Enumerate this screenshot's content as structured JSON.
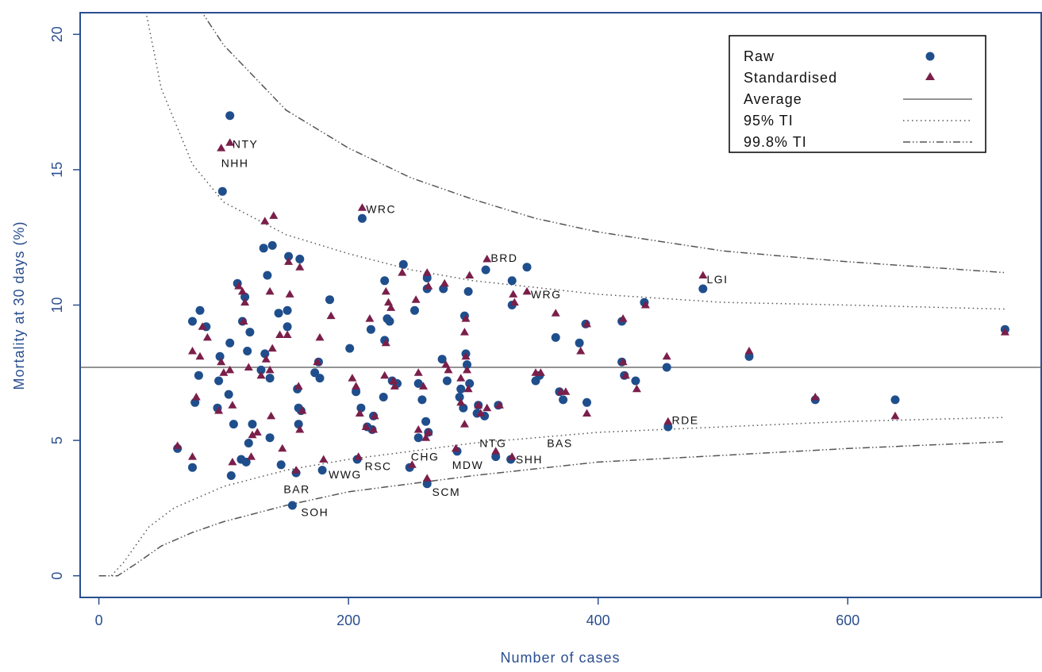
{
  "chart_data": {
    "type": "scatter",
    "title": "",
    "xlabel": "Number of cases",
    "ylabel": "Mortality at 30 days (%)",
    "xlim": [
      -15,
      755
    ],
    "ylim": [
      -0.8,
      20.8
    ],
    "xticks": [
      0,
      200,
      400,
      600
    ],
    "yticks": [
      0,
      5,
      10,
      15,
      20
    ],
    "grid": false,
    "legend_position": "top-right",
    "legend": [
      {
        "label": "Raw",
        "kind": "circle"
      },
      {
        "label": "Standardised",
        "kind": "triangle"
      },
      {
        "label": "Average",
        "kind": "solid"
      },
      {
        "label": "95% TI",
        "kind": "dotted"
      },
      {
        "label": "99.8% TI",
        "kind": "dashdot"
      }
    ],
    "average": 7.7,
    "colors": {
      "raw": "#1f4e8c",
      "standardised": "#7a1f4a",
      "axis": "#2a4f8f",
      "lines": "#555555"
    },
    "series": [
      {
        "name": "Raw",
        "marker": "circle",
        "points": [
          [
            63,
            4.7
          ],
          [
            75,
            4.0
          ],
          [
            75,
            9.4
          ],
          [
            77,
            6.4
          ],
          [
            80,
            7.4
          ],
          [
            81,
            9.8
          ],
          [
            86,
            9.2
          ],
          [
            95,
            6.2
          ],
          [
            96,
            7.2
          ],
          [
            97,
            8.1
          ],
          [
            99,
            14.2
          ],
          [
            104,
            6.7
          ],
          [
            105,
            8.6
          ],
          [
            105,
            17.0
          ],
          [
            106,
            3.7
          ],
          [
            108,
            5.6
          ],
          [
            111,
            10.8
          ],
          [
            114,
            4.3
          ],
          [
            115,
            9.4
          ],
          [
            117,
            10.3
          ],
          [
            118,
            4.2
          ],
          [
            119,
            8.3
          ],
          [
            120,
            4.9
          ],
          [
            121,
            9.0
          ],
          [
            123,
            5.6
          ],
          [
            130,
            7.6
          ],
          [
            132,
            12.1
          ],
          [
            133,
            8.2
          ],
          [
            135,
            11.1
          ],
          [
            137,
            7.3
          ],
          [
            137,
            5.1
          ],
          [
            139,
            12.2
          ],
          [
            144,
            9.7
          ],
          [
            146,
            4.1
          ],
          [
            151,
            9.2
          ],
          [
            151,
            9.8
          ],
          [
            152,
            11.8
          ],
          [
            155,
            2.6
          ],
          [
            158,
            3.8
          ],
          [
            159,
            6.9
          ],
          [
            160,
            5.6
          ],
          [
            160,
            6.2
          ],
          [
            161,
            11.7
          ],
          [
            162,
            6.1
          ],
          [
            173,
            7.5
          ],
          [
            176,
            7.9
          ],
          [
            177,
            7.3
          ],
          [
            179,
            3.9
          ],
          [
            185,
            10.2
          ],
          [
            201,
            8.4
          ],
          [
            206,
            6.8
          ],
          [
            207,
            4.3
          ],
          [
            210,
            6.2
          ],
          [
            211,
            13.2
          ],
          [
            215,
            5.5
          ],
          [
            218,
            9.1
          ],
          [
            219,
            5.4
          ],
          [
            220,
            5.9
          ],
          [
            228,
            6.6
          ],
          [
            229,
            10.9
          ],
          [
            229,
            8.7
          ],
          [
            231,
            9.5
          ],
          [
            233,
            9.4
          ],
          [
            235,
            7.2
          ],
          [
            239,
            7.1
          ],
          [
            244,
            11.5
          ],
          [
            249,
            4.0
          ],
          [
            253,
            9.8
          ],
          [
            256,
            7.1
          ],
          [
            256,
            5.1
          ],
          [
            259,
            6.5
          ],
          [
            262,
            5.7
          ],
          [
            263,
            3.4
          ],
          [
            263,
            11.0
          ],
          [
            263,
            10.6
          ],
          [
            264,
            5.3
          ],
          [
            275,
            8.0
          ],
          [
            276,
            10.6
          ],
          [
            279,
            7.2
          ],
          [
            287,
            4.6
          ],
          [
            289,
            6.6
          ],
          [
            290,
            6.9
          ],
          [
            292,
            6.2
          ],
          [
            293,
            9.6
          ],
          [
            294,
            8.2
          ],
          [
            295,
            7.8
          ],
          [
            296,
            10.5
          ],
          [
            297,
            7.1
          ],
          [
            303,
            6.0
          ],
          [
            304,
            6.3
          ],
          [
            309,
            5.9
          ],
          [
            310,
            11.3
          ],
          [
            318,
            4.4
          ],
          [
            320,
            6.3
          ],
          [
            330,
            4.3
          ],
          [
            331,
            10.9
          ],
          [
            331,
            10.0
          ],
          [
            343,
            11.4
          ],
          [
            350,
            7.2
          ],
          [
            353,
            7.4
          ],
          [
            366,
            8.8
          ],
          [
            369,
            6.8
          ],
          [
            372,
            6.5
          ],
          [
            385,
            8.6
          ],
          [
            390,
            9.3
          ],
          [
            391,
            6.4
          ],
          [
            419,
            9.4
          ],
          [
            419,
            7.9
          ],
          [
            421,
            7.4
          ],
          [
            430,
            7.2
          ],
          [
            437,
            10.1
          ],
          [
            455,
            7.7
          ],
          [
            456,
            5.5
          ],
          [
            484,
            10.6
          ],
          [
            521,
            8.1
          ],
          [
            574,
            6.5
          ],
          [
            638,
            6.5
          ],
          [
            726,
            9.1
          ]
        ]
      },
      {
        "name": "Standardised",
        "marker": "triangle",
        "points": [
          [
            63,
            4.8
          ],
          [
            75,
            8.3
          ],
          [
            75,
            4.4
          ],
          [
            78,
            6.6
          ],
          [
            81,
            8.1
          ],
          [
            83,
            9.2
          ],
          [
            87,
            8.8
          ],
          [
            96,
            6.1
          ],
          [
            98,
            7.9
          ],
          [
            98,
            15.8
          ],
          [
            100,
            7.5
          ],
          [
            105,
            16.0
          ],
          [
            105,
            7.6
          ],
          [
            107,
            6.3
          ],
          [
            107,
            4.2
          ],
          [
            112,
            10.7
          ],
          [
            115,
            10.5
          ],
          [
            116,
            9.4
          ],
          [
            117,
            10.1
          ],
          [
            120,
            7.7
          ],
          [
            122,
            4.4
          ],
          [
            123,
            5.2
          ],
          [
            127,
            5.3
          ],
          [
            130,
            7.4
          ],
          [
            133,
            13.1
          ],
          [
            134,
            8.0
          ],
          [
            137,
            10.5
          ],
          [
            137,
            7.6
          ],
          [
            138,
            5.9
          ],
          [
            139,
            8.4
          ],
          [
            140,
            13.3
          ],
          [
            145,
            8.9
          ],
          [
            147,
            4.7
          ],
          [
            151,
            8.9
          ],
          [
            152,
            11.6
          ],
          [
            153,
            10.4
          ],
          [
            158,
            3.9
          ],
          [
            160,
            7.0
          ],
          [
            161,
            11.4
          ],
          [
            161,
            5.4
          ],
          [
            163,
            6.1
          ],
          [
            175,
            7.9
          ],
          [
            177,
            8.8
          ],
          [
            180,
            4.3
          ],
          [
            186,
            9.6
          ],
          [
            203,
            7.3
          ],
          [
            206,
            7.0
          ],
          [
            208,
            4.4
          ],
          [
            209,
            6.0
          ],
          [
            211,
            13.6
          ],
          [
            214,
            5.5
          ],
          [
            217,
            9.5
          ],
          [
            220,
            5.4
          ],
          [
            221,
            5.9
          ],
          [
            229,
            7.4
          ],
          [
            230,
            10.5
          ],
          [
            230,
            8.6
          ],
          [
            232,
            10.1
          ],
          [
            234,
            9.9
          ],
          [
            236,
            7.2
          ],
          [
            237,
            7.0
          ],
          [
            243,
            11.2
          ],
          [
            251,
            4.1
          ],
          [
            254,
            10.2
          ],
          [
            256,
            7.5
          ],
          [
            256,
            5.4
          ],
          [
            260,
            7.0
          ],
          [
            262,
            5.1
          ],
          [
            263,
            3.6
          ],
          [
            263,
            11.2
          ],
          [
            264,
            10.7
          ],
          [
            264,
            5.3
          ],
          [
            277,
            10.8
          ],
          [
            278,
            7.8
          ],
          [
            280,
            7.6
          ],
          [
            286,
            4.7
          ],
          [
            290,
            6.4
          ],
          [
            290,
            7.3
          ],
          [
            293,
            5.6
          ],
          [
            293,
            9.0
          ],
          [
            294,
            9.5
          ],
          [
            294,
            8.1
          ],
          [
            295,
            7.6
          ],
          [
            296,
            6.9
          ],
          [
            297,
            11.1
          ],
          [
            304,
            6.3
          ],
          [
            306,
            6.0
          ],
          [
            311,
            6.2
          ],
          [
            311,
            11.7
          ],
          [
            318,
            4.6
          ],
          [
            321,
            6.3
          ],
          [
            331,
            4.4
          ],
          [
            332,
            10.4
          ],
          [
            333,
            10.1
          ],
          [
            343,
            10.5
          ],
          [
            350,
            7.5
          ],
          [
            354,
            7.5
          ],
          [
            366,
            9.7
          ],
          [
            370,
            6.8
          ],
          [
            374,
            6.8
          ],
          [
            386,
            8.3
          ],
          [
            391,
            9.3
          ],
          [
            391,
            6.0
          ],
          [
            420,
            9.5
          ],
          [
            420,
            7.9
          ],
          [
            422,
            7.4
          ],
          [
            431,
            6.9
          ],
          [
            438,
            10.0
          ],
          [
            455,
            8.1
          ],
          [
            456,
            5.7
          ],
          [
            484,
            11.1
          ],
          [
            521,
            8.3
          ],
          [
            574,
            6.6
          ],
          [
            638,
            5.9
          ],
          [
            726,
            9.0
          ]
        ]
      }
    ],
    "tolerance_intervals": {
      "ti95_upper": [
        [
          37,
          21.0
        ],
        [
          50,
          18.0
        ],
        [
          75,
          15.2
        ],
        [
          100,
          13.8
        ],
        [
          150,
          12.6
        ],
        [
          200,
          11.9
        ],
        [
          250,
          11.3
        ],
        [
          300,
          10.9
        ],
        [
          400,
          10.4
        ],
        [
          500,
          10.1
        ],
        [
          600,
          10.0
        ],
        [
          726,
          9.85
        ]
      ],
      "ti95_lower": [
        [
          10,
          0.0
        ],
        [
          20,
          0.5
        ],
        [
          40,
          1.8
        ],
        [
          60,
          2.5
        ],
        [
          100,
          3.3
        ],
        [
          150,
          3.9
        ],
        [
          200,
          4.3
        ],
        [
          250,
          4.6
        ],
        [
          300,
          4.9
        ],
        [
          400,
          5.3
        ],
        [
          500,
          5.5
        ],
        [
          600,
          5.7
        ],
        [
          726,
          5.85
        ]
      ],
      "ti998_upper": [
        [
          80,
          21.0
        ],
        [
          100,
          19.6
        ],
        [
          150,
          17.2
        ],
        [
          200,
          15.8
        ],
        [
          250,
          14.7
        ],
        [
          300,
          13.9
        ],
        [
          350,
          13.2
        ],
        [
          400,
          12.7
        ],
        [
          500,
          12.0
        ],
        [
          600,
          11.6
        ],
        [
          726,
          11.2
        ]
      ],
      "ti998_lower": [
        [
          0,
          0.0
        ],
        [
          15,
          0.0
        ],
        [
          30,
          0.45
        ],
        [
          50,
          1.1
        ],
        [
          75,
          1.6
        ],
        [
          100,
          2.0
        ],
        [
          150,
          2.6
        ],
        [
          200,
          3.1
        ],
        [
          250,
          3.4
        ],
        [
          300,
          3.7
        ],
        [
          350,
          3.95
        ],
        [
          400,
          4.2
        ],
        [
          500,
          4.45
        ],
        [
          600,
          4.7
        ],
        [
          726,
          4.95
        ]
      ]
    },
    "labels": [
      {
        "text": "NTY",
        "x": 107,
        "y": 15.95
      },
      {
        "text": "NHH",
        "x": 98,
        "y": 15.25
      },
      {
        "text": "WRC",
        "x": 214,
        "y": 13.55
      },
      {
        "text": "BRD",
        "x": 314,
        "y": 11.75
      },
      {
        "text": "LGI",
        "x": 487,
        "y": 10.95
      },
      {
        "text": "WRG",
        "x": 346,
        "y": 10.4
      },
      {
        "text": "RDE",
        "x": 459,
        "y": 5.75
      },
      {
        "text": "NTG",
        "x": 305,
        "y": 4.9
      },
      {
        "text": "BAS",
        "x": 359,
        "y": 4.9
      },
      {
        "text": "CHG",
        "x": 250,
        "y": 4.4
      },
      {
        "text": "MDW",
        "x": 283,
        "y": 4.1
      },
      {
        "text": "SHH",
        "x": 334,
        "y": 4.3
      },
      {
        "text": "RSC",
        "x": 213,
        "y": 4.05
      },
      {
        "text": "WWG",
        "x": 184,
        "y": 3.75
      },
      {
        "text": "BAR",
        "x": 148,
        "y": 3.2
      },
      {
        "text": "SCM",
        "x": 267,
        "y": 3.1
      },
      {
        "text": "SOH",
        "x": 162,
        "y": 2.35
      }
    ]
  }
}
